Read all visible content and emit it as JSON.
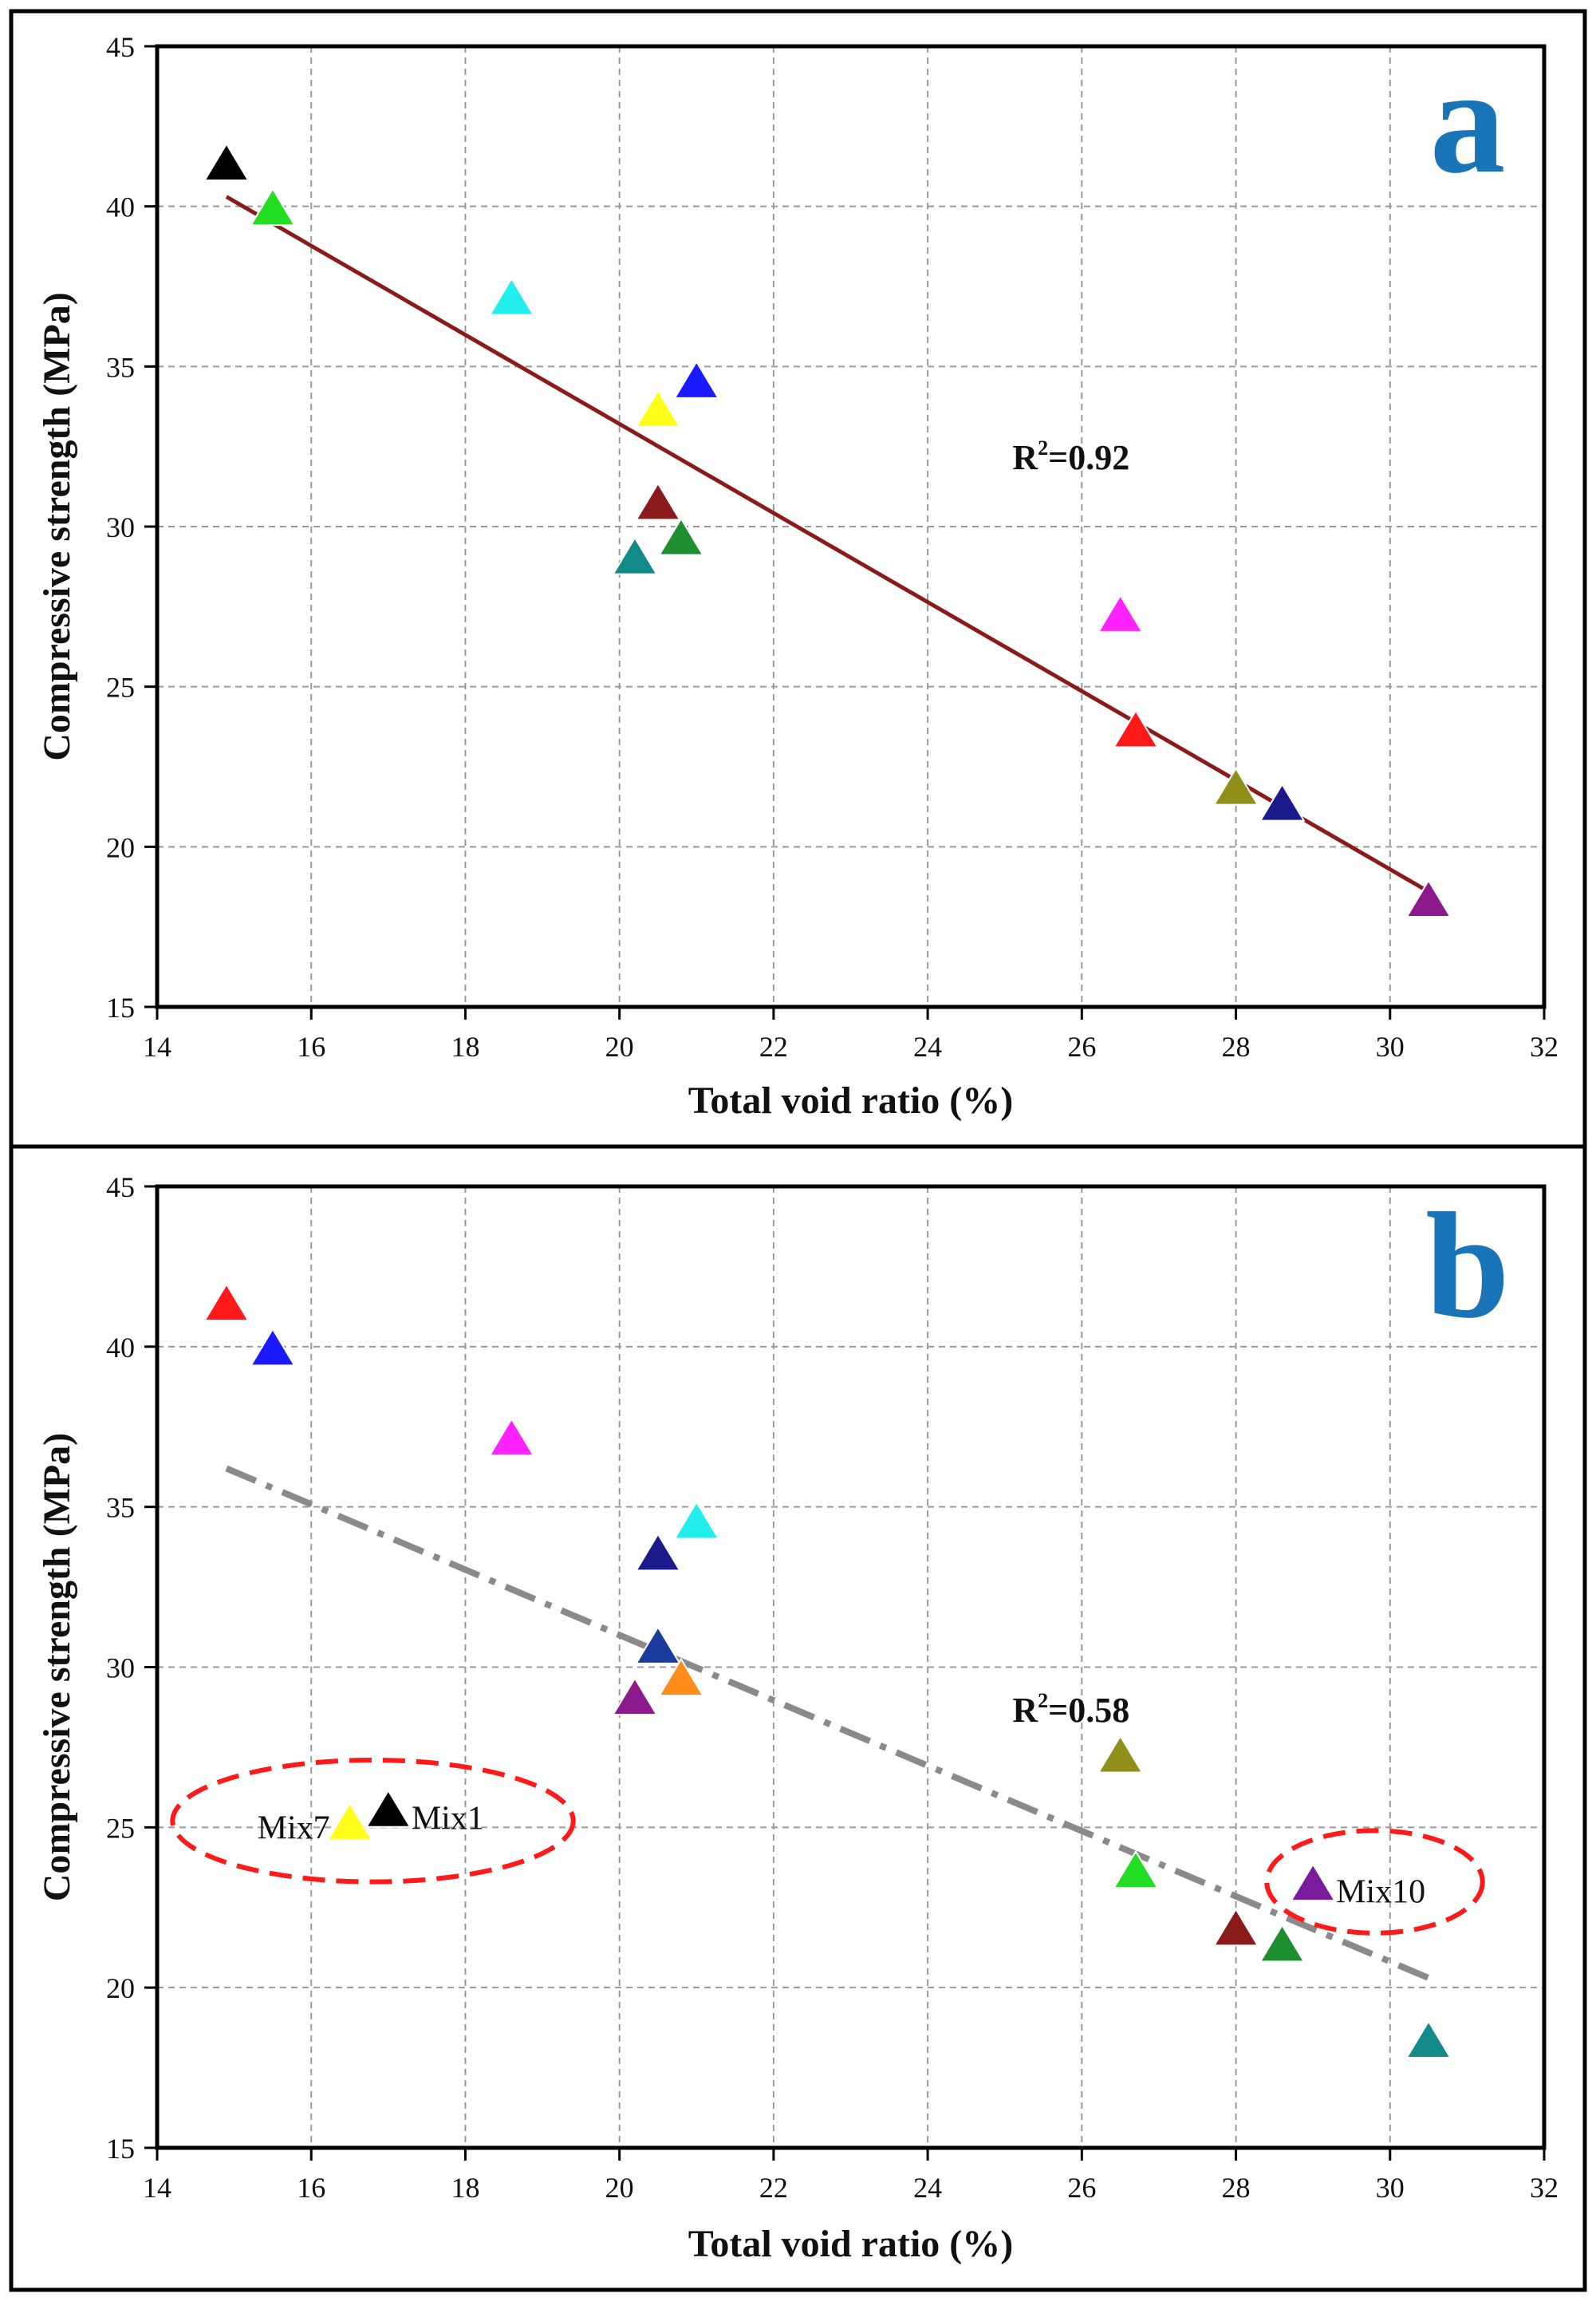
{
  "charts": [
    {
      "panel_label": "a",
      "panel_color": "#1a74b8",
      "title": "",
      "type": "scatter",
      "xlabel": "Total void ratio (%)",
      "ylabel": "Compressive strength (MPa)",
      "xlim": [
        14,
        32
      ],
      "ylim": [
        15,
        45
      ],
      "xticks": [
        14,
        16,
        18,
        20,
        22,
        24,
        26,
        28,
        30,
        32
      ],
      "yticks": [
        15,
        20,
        25,
        30,
        35,
        40,
        45
      ],
      "grid": true,
      "points": [
        {
          "x": 14.9,
          "y": 41.3,
          "color": "#000000"
        },
        {
          "x": 15.5,
          "y": 39.9,
          "color": "#22dd22"
        },
        {
          "x": 18.6,
          "y": 37.1,
          "color": "#22eeee"
        },
        {
          "x": 21.0,
          "y": 34.5,
          "color": "#1a1aff"
        },
        {
          "x": 20.5,
          "y": 33.6,
          "color": "#ffff1a"
        },
        {
          "x": 20.5,
          "y": 30.7,
          "color": "#8b1a1a"
        },
        {
          "x": 20.8,
          "y": 29.6,
          "color": "#1e8f2e"
        },
        {
          "x": 20.2,
          "y": 29.0,
          "color": "#138a8a"
        },
        {
          "x": 26.5,
          "y": 27.2,
          "color": "#ff22ff"
        },
        {
          "x": 26.7,
          "y": 23.6,
          "color": "#ff1a1a"
        },
        {
          "x": 28.0,
          "y": 21.8,
          "color": "#8f8f1a"
        },
        {
          "x": 28.6,
          "y": 21.3,
          "color": "#1a1a8c"
        },
        {
          "x": 30.5,
          "y": 18.3,
          "color": "#8c1a8c"
        }
      ],
      "fit": {
        "x": [
          14.9,
          30.5
        ],
        "y": [
          40.3,
          18.6
        ],
        "color": "#8b1a1a",
        "style": "solid"
      },
      "r2_label": {
        "prefix": "R",
        "sup": "2",
        "suffix": "=0.92",
        "x": 25.1,
        "y": 31.8
      },
      "annotations": [],
      "ellipses": []
    },
    {
      "panel_label": "b",
      "panel_color": "#1a74b8",
      "title": "",
      "type": "scatter",
      "xlabel": "Total void ratio (%)",
      "ylabel": "Compressive strength (MPa)",
      "xlim": [
        14,
        32
      ],
      "ylim": [
        15,
        45
      ],
      "xticks": [
        14,
        16,
        18,
        20,
        22,
        24,
        26,
        28,
        30,
        32
      ],
      "yticks": [
        15,
        20,
        25,
        30,
        35,
        40,
        45
      ],
      "grid": true,
      "points": [
        {
          "x": 14.9,
          "y": 41.3,
          "color": "#ff1a1a"
        },
        {
          "x": 15.5,
          "y": 39.9,
          "color": "#1a1aff"
        },
        {
          "x": 18.6,
          "y": 37.1,
          "color": "#ff22ff"
        },
        {
          "x": 21.0,
          "y": 34.5,
          "color": "#22eeee"
        },
        {
          "x": 20.5,
          "y": 33.5,
          "color": "#1a1a8c"
        },
        {
          "x": 20.5,
          "y": 30.6,
          "color": "#1a3a9c"
        },
        {
          "x": 20.8,
          "y": 29.6,
          "color": "#ff8c1a"
        },
        {
          "x": 20.2,
          "y": 29.0,
          "color": "#8c1a8c"
        },
        {
          "x": 17.0,
          "y": 25.5,
          "color": "#000000"
        },
        {
          "x": 16.5,
          "y": 25.1,
          "color": "#ffff1a"
        },
        {
          "x": 26.5,
          "y": 27.2,
          "color": "#8f8f1a"
        },
        {
          "x": 26.7,
          "y": 23.6,
          "color": "#22dd22"
        },
        {
          "x": 29.0,
          "y": 23.2,
          "color": "#7a1a9c"
        },
        {
          "x": 28.0,
          "y": 21.8,
          "color": "#8b1a1a"
        },
        {
          "x": 28.6,
          "y": 21.3,
          "color": "#1e8f2e"
        },
        {
          "x": 30.5,
          "y": 18.3,
          "color": "#138a8a"
        }
      ],
      "fit": {
        "x": [
          14.9,
          30.5
        ],
        "y": [
          36.2,
          20.3
        ],
        "color": "#8a8a8a",
        "style": "dashdot"
      },
      "r2_label": {
        "prefix": "R",
        "sup": "2",
        "suffix": "=0.58",
        "x": 25.1,
        "y": 28.3
      },
      "annotations": [
        {
          "text": "Mix7",
          "x": 15.3,
          "y": 25.0
        },
        {
          "text": "Mix1",
          "x": 17.3,
          "y": 25.3
        },
        {
          "text": "Mix10",
          "x": 29.3,
          "y": 23.0
        }
      ],
      "ellipses": [
        {
          "cx": 16.8,
          "cy": 25.2,
          "rx": 2.6,
          "ry": 1.9
        },
        {
          "cx": 29.8,
          "cy": 23.3,
          "rx": 1.4,
          "ry": 1.6
        }
      ]
    }
  ]
}
